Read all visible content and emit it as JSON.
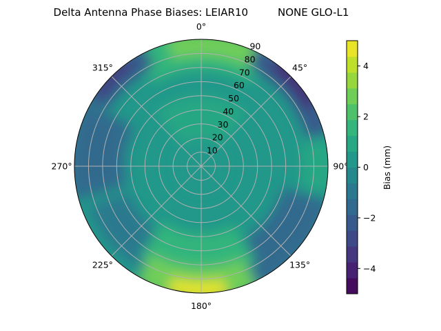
{
  "chart_data": {
    "type": "polar-contour",
    "title": "Delta Antenna Phase Biases: LEIAR10         NONE GLO-L1",
    "angle_ticks": [
      "0°",
      "45°",
      "90°",
      "135°",
      "180°",
      "225°",
      "270°",
      "315°"
    ],
    "angle_tick_values": [
      0,
      45,
      90,
      135,
      180,
      225,
      270,
      315
    ],
    "radial_ticks": [
      "10",
      "20",
      "30",
      "40",
      "50",
      "60",
      "70",
      "80",
      "90"
    ],
    "radial_tick_values": [
      10,
      20,
      30,
      40,
      50,
      60,
      70,
      80,
      90
    ],
    "rlim": [
      0,
      90
    ],
    "grid": true,
    "colorbar": {
      "label": "Bias (mm)",
      "ticks": [
        "−4",
        "−2",
        "0",
        "2",
        "4"
      ],
      "tick_values": [
        -4,
        -2,
        0,
        2,
        4
      ],
      "range": [
        -5,
        5
      ],
      "levels": [
        -5,
        -4.375,
        -3.75,
        -3.125,
        -2.5,
        -1.875,
        -1.25,
        -0.625,
        0,
        0.625,
        1.25,
        1.875,
        2.5,
        3.125,
        3.75,
        4.375,
        5
      ],
      "colormap": "viridis"
    },
    "features": [
      {
        "region": "center (zenith 0-30)",
        "bias_mm": 0
      },
      {
        "region": "azimuth 0, zenith 70-90",
        "bias_mm": 2.5
      },
      {
        "region": "azimuth 40-60, zenith 80-90",
        "bias_mm": -4
      },
      {
        "region": "azimuth 310-320, zenith 80-90",
        "bias_mm": -3.5
      },
      {
        "region": "azimuth 265-285, zenith 60-90",
        "bias_mm": -1.5
      },
      {
        "region": "azimuth 100-150, zenith 60-90",
        "bias_mm": -1.5
      },
      {
        "region": "azimuth 90, zenith 75-90",
        "bias_mm": 1
      },
      {
        "region": "azimuth 170-190, zenith 75-90",
        "bias_mm": 4.5
      },
      {
        "region": "azimuth 170-200, zenith 50-70",
        "bias_mm": 2
      }
    ]
  }
}
